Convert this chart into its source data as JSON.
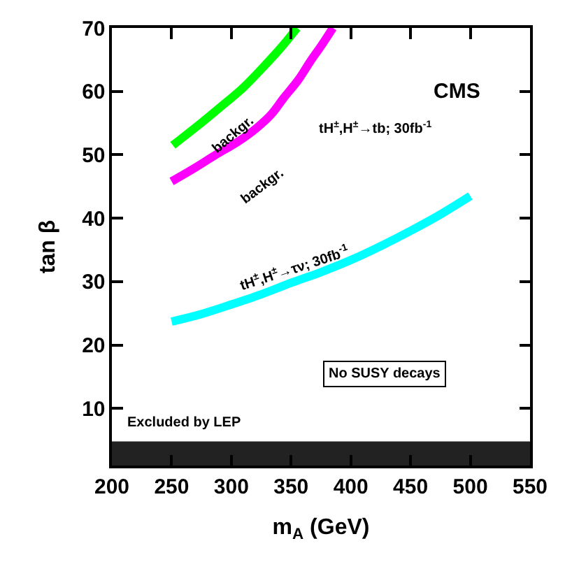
{
  "chart_data": {
    "type": "line",
    "xlabel": "m$_{A}$ (GeV)",
    "ylabel": "tan β",
    "xlim": [
      200,
      550
    ],
    "xticks": [
      200,
      250,
      300,
      350,
      400,
      450,
      500,
      550
    ],
    "ylim": [
      1,
      70
    ],
    "yticks": [
      10,
      20,
      30,
      40,
      50,
      60,
      70
    ],
    "grid": false,
    "marker": "none",
    "line_style": "solid",
    "series": [
      {
        "color": "#00ff00",
        "x": [
          251,
          270,
          290,
          310,
          328,
          342,
          355
        ],
        "values": [
          51.5,
          54.3,
          57.4,
          60.6,
          64.1,
          67.0,
          70
        ]
      },
      {
        "color": "#ff00ff",
        "x": [
          250,
          270,
          287,
          305,
          321,
          334,
          344,
          356,
          366,
          376,
          385
        ],
        "values": [
          45.8,
          48.0,
          50.0,
          52.0,
          54.2,
          56.5,
          59.0,
          61.8,
          64.7,
          67.4,
          70
        ]
      },
      {
        "color": "#00ffff",
        "x": [
          250,
          275,
          300,
          325,
          350,
          375,
          400,
          425,
          450,
          475,
          500
        ],
        "values": [
          23.7,
          24.9,
          26.4,
          28.0,
          29.8,
          31.5,
          33.4,
          35.6,
          38.0,
          40.6,
          43.5
        ]
      }
    ],
    "bands": [
      {
        "axis": "y",
        "from": 1,
        "to": 4.8,
        "label": "Excluded by LEP",
        "color": "#222222"
      }
    ],
    "annotations": [
      "CMS",
      "backgr.",
      "backgr.",
      "tH$^{±}$,H$^{±}$→tb; 30fb$^{-1}$",
      "tH$^{±}$,H$^{±}$→τν; 30fb$^{-1}$",
      "No SUSY decays"
    ]
  }
}
